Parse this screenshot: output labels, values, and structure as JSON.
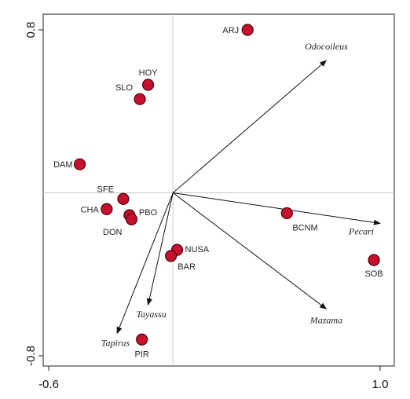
{
  "chart_data": {
    "type": "scatter",
    "title": "",
    "xlabel": "",
    "ylabel": "",
    "xlim": [
      -0.6,
      1.0
    ],
    "ylim": [
      -0.8,
      0.8
    ],
    "x_ticks": [
      {
        "value": -0.6,
        "label": "-0.6"
      },
      {
        "value": 1.0,
        "label": "1.0"
      }
    ],
    "y_ticks": [
      {
        "value": 0.8,
        "label": "0.8"
      },
      {
        "value": -0.8,
        "label": "-0.8"
      }
    ],
    "grid": false,
    "zero_lines": true,
    "point_color": "#c8102e",
    "arrow_color": "#111111",
    "sites": [
      {
        "label": "ARJ",
        "x": 0.36,
        "y": 0.8
      },
      {
        "label": "HOY",
        "x": -0.12,
        "y": 0.53
      },
      {
        "label": "SLO",
        "x": -0.16,
        "y": 0.46
      },
      {
        "label": "DAM",
        "x": -0.45,
        "y": 0.14
      },
      {
        "label": "SFE",
        "x": -0.24,
        "y": -0.03
      },
      {
        "label": "PBO",
        "x": -0.21,
        "y": -0.11
      },
      {
        "label": "CHA",
        "x": -0.32,
        "y": -0.08
      },
      {
        "label": "DON",
        "x": -0.2,
        "y": -0.13
      },
      {
        "label": "BCNM",
        "x": 0.55,
        "y": -0.1
      },
      {
        "label": "SOB",
        "x": 0.97,
        "y": -0.33
      },
      {
        "label": "NUSA",
        "x": 0.02,
        "y": -0.28
      },
      {
        "label": "BAR",
        "x": -0.01,
        "y": -0.31
      },
      {
        "label": "PIR",
        "x": -0.15,
        "y": -0.72
      }
    ],
    "species": [
      {
        "label": "Odocoileus",
        "x": 0.74,
        "y": 0.65
      },
      {
        "label": "Pecari",
        "x": 1.0,
        "y": -0.15
      },
      {
        "label": "Mazama",
        "x": 0.74,
        "y": -0.57
      },
      {
        "label": "Tayassu",
        "x": -0.12,
        "y": -0.55
      },
      {
        "label": "Tapirus",
        "x": -0.27,
        "y": -0.69
      }
    ]
  }
}
